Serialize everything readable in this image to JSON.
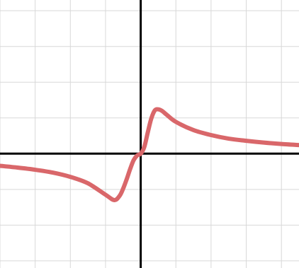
{
  "chart_data": {
    "type": "line",
    "title": "",
    "xlabel": "",
    "ylabel": "",
    "xlim": [
      -4,
      4.5
    ],
    "ylim": [
      -3.2,
      4.3
    ],
    "grid": true,
    "x_grid_step": 1,
    "y_grid_step": 1,
    "axes_visible": true,
    "tick_labels_visible": false,
    "series": [
      {
        "color": "#d9676a",
        "x": [
          -4,
          -3.5,
          -3,
          -2.5,
          -2,
          -1.5,
          -1,
          -0.75,
          -0.6,
          -0.5,
          -0.4,
          -0.3,
          -0.2,
          -0.1,
          0,
          0.1,
          0.2,
          0.3,
          0.4,
          0.5,
          0.6,
          0.75,
          1,
          1.5,
          2,
          2.5,
          3,
          3.5,
          4,
          4.5
        ],
        "y": [
          -0.34,
          -0.39,
          -0.45,
          -0.53,
          -0.65,
          -0.83,
          -1.15,
          -1.3,
          -1.18,
          -0.98,
          -0.72,
          -0.43,
          -0.18,
          -0.05,
          0.0,
          0.18,
          0.59,
          0.98,
          1.21,
          1.24,
          1.2,
          1.08,
          0.89,
          0.66,
          0.52,
          0.42,
          0.36,
          0.31,
          0.27,
          0.24
        ]
      }
    ]
  }
}
